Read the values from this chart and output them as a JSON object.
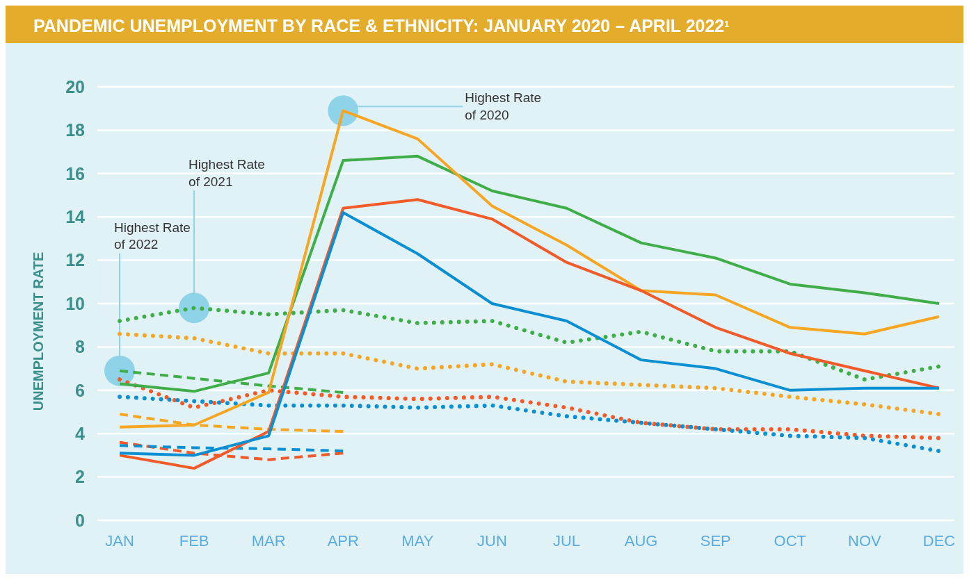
{
  "chart_data": {
    "type": "line",
    "title": "PANDEMIC UNEMPLOYMENT BY RACE & ETHNICITY: JANUARY 2020 – APRIL 2022$^{1}$",
    "ylabel": "UNEMPLOYMENT RATE",
    "categories": [
      "JAN",
      "FEB",
      "MAR",
      "APR",
      "MAY",
      "JUN",
      "JUL",
      "AUG",
      "SEP",
      "OCT",
      "NOV",
      "DEC"
    ],
    "ylim": [
      0,
      20
    ],
    "yticks": [
      0,
      2,
      4,
      6,
      8,
      10,
      12,
      14,
      16,
      18,
      20
    ],
    "grid": "y",
    "marker": "none",
    "series": [
      {
        "color": "#3fae49",
        "line_style": "dotted",
        "values": [
          9.2,
          9.8,
          9.5,
          9.7,
          9.1,
          9.2,
          8.2,
          8.7,
          7.8,
          7.8,
          6.5,
          7.1
        ]
      },
      {
        "color": "#f6a623",
        "line_style": "dotted",
        "values": [
          8.6,
          8.4,
          7.7,
          7.7,
          7.0,
          7.2,
          6.4,
          6.25,
          6.1,
          5.7,
          5.35,
          4.9
        ]
      },
      {
        "color": "#f15a29",
        "line_style": "dotted",
        "values": [
          6.5,
          5.2,
          6.0,
          5.7,
          5.6,
          5.7,
          5.2,
          4.5,
          4.2,
          4.2,
          3.9,
          3.8
        ]
      },
      {
        "color": "#0a8fd3",
        "line_style": "dotted",
        "values": [
          5.7,
          5.5,
          5.3,
          5.3,
          5.2,
          5.3,
          4.8,
          4.5,
          4.2,
          3.9,
          3.8,
          3.2
        ]
      },
      {
        "color": "#3fae49",
        "line_style": "dashed",
        "values": [
          6.9,
          6.55,
          6.2,
          5.9,
          null,
          null,
          null,
          null,
          null,
          null,
          null,
          null
        ]
      },
      {
        "color": "#f6a623",
        "line_style": "dashed",
        "values": [
          4.9,
          4.4,
          4.2,
          4.1,
          null,
          null,
          null,
          null,
          null,
          null,
          null,
          null
        ]
      },
      {
        "color": "#f15a29",
        "line_style": "dashed",
        "values": [
          3.6,
          3.1,
          2.8,
          3.1,
          null,
          null,
          null,
          null,
          null,
          null,
          null,
          null
        ]
      },
      {
        "color": "#0a8fd3",
        "line_style": "dashed",
        "values": [
          3.45,
          3.35,
          3.3,
          3.2,
          null,
          null,
          null,
          null,
          null,
          null,
          null,
          null
        ]
      },
      {
        "color": "#3fae49",
        "line_style": "solid",
        "values": [
          6.3,
          5.95,
          6.8,
          16.6,
          16.8,
          15.2,
          14.4,
          12.8,
          12.1,
          10.9,
          10.5,
          10.0
        ]
      },
      {
        "color": "#f6a623",
        "line_style": "solid",
        "values": [
          4.3,
          4.4,
          5.9,
          18.9,
          17.6,
          14.5,
          12.7,
          10.6,
          10.4,
          8.9,
          8.6,
          9.4
        ]
      },
      {
        "color": "#f15a29",
        "line_style": "solid",
        "values": [
          3.0,
          2.4,
          4.1,
          14.4,
          14.8,
          13.9,
          11.9,
          10.6,
          8.9,
          7.7,
          6.9,
          6.1
        ]
      },
      {
        "color": "#0a8fd3",
        "line_style": "solid",
        "values": [
          3.1,
          3.0,
          3.9,
          14.2,
          12.3,
          10.0,
          9.2,
          7.4,
          7.0,
          6.0,
          6.1,
          6.1
        ]
      }
    ],
    "annotations": [
      {
        "text": "Highest Rate of 2020",
        "x": "APR",
        "y": 18.9
      },
      {
        "text": "Highest Rate of 2021",
        "x": "FEB",
        "y": 9.8
      },
      {
        "text": "Highest Rate of 2022",
        "x": "JAN",
        "y": 6.9
      }
    ]
  }
}
